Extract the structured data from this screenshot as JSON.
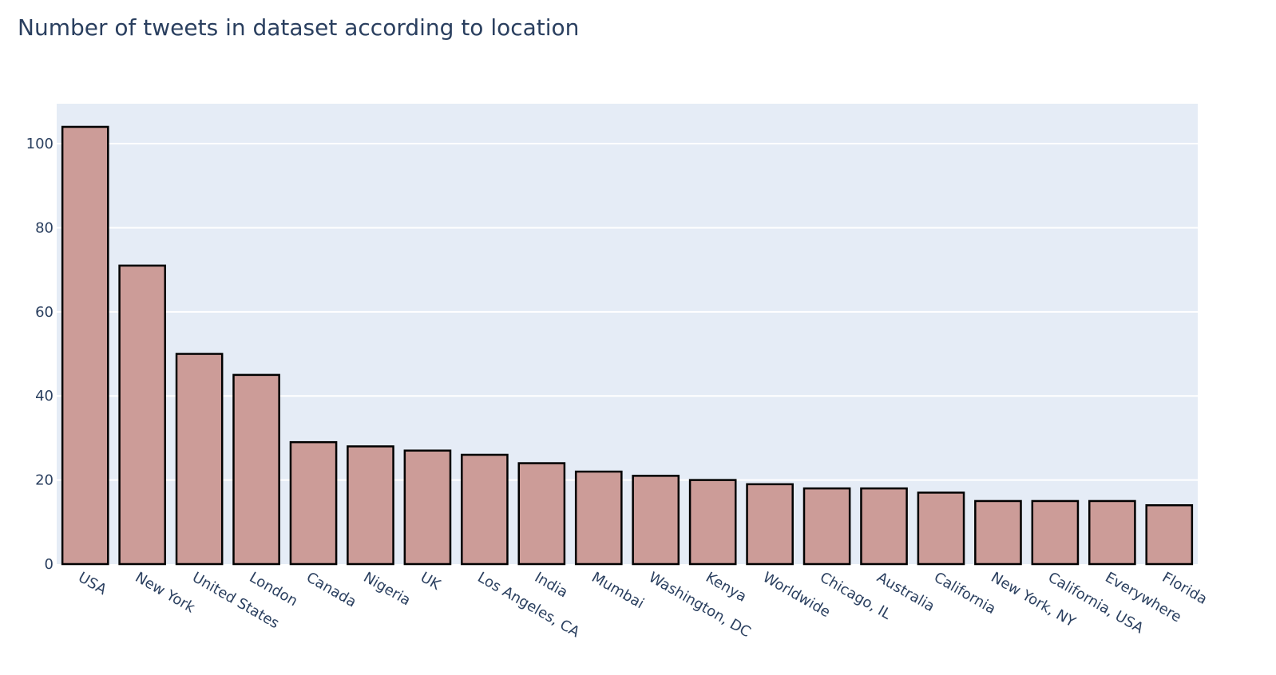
{
  "chart_data": {
    "type": "bar",
    "title": "Number of tweets in dataset according to location",
    "xlabel": "",
    "ylabel": "",
    "categories": [
      "USA",
      "New York",
      "United States",
      "London",
      "Canada",
      "Nigeria",
      "UK",
      "Los Angeles, CA",
      "India",
      "Mumbai",
      "Washington, DC",
      "Kenya",
      "Worldwide",
      "Chicago, IL",
      "Australia",
      "California",
      "New York, NY",
      "California, USA",
      "Everywhere",
      "Florida"
    ],
    "values": [
      104,
      71,
      50,
      45,
      29,
      28,
      27,
      26,
      24,
      22,
      21,
      20,
      19,
      18,
      18,
      17,
      15,
      15,
      15,
      14
    ],
    "ylim": [
      0,
      109.5
    ],
    "yticks": [
      0,
      20,
      40,
      60,
      80,
      100
    ],
    "grid": true,
    "colors": {
      "bar_fill": "#cc9c98",
      "bar_stroke": "#000000",
      "plot_bg": "#e5ecf6",
      "grid": "#ffffff",
      "text": "#2a3f5f"
    }
  }
}
